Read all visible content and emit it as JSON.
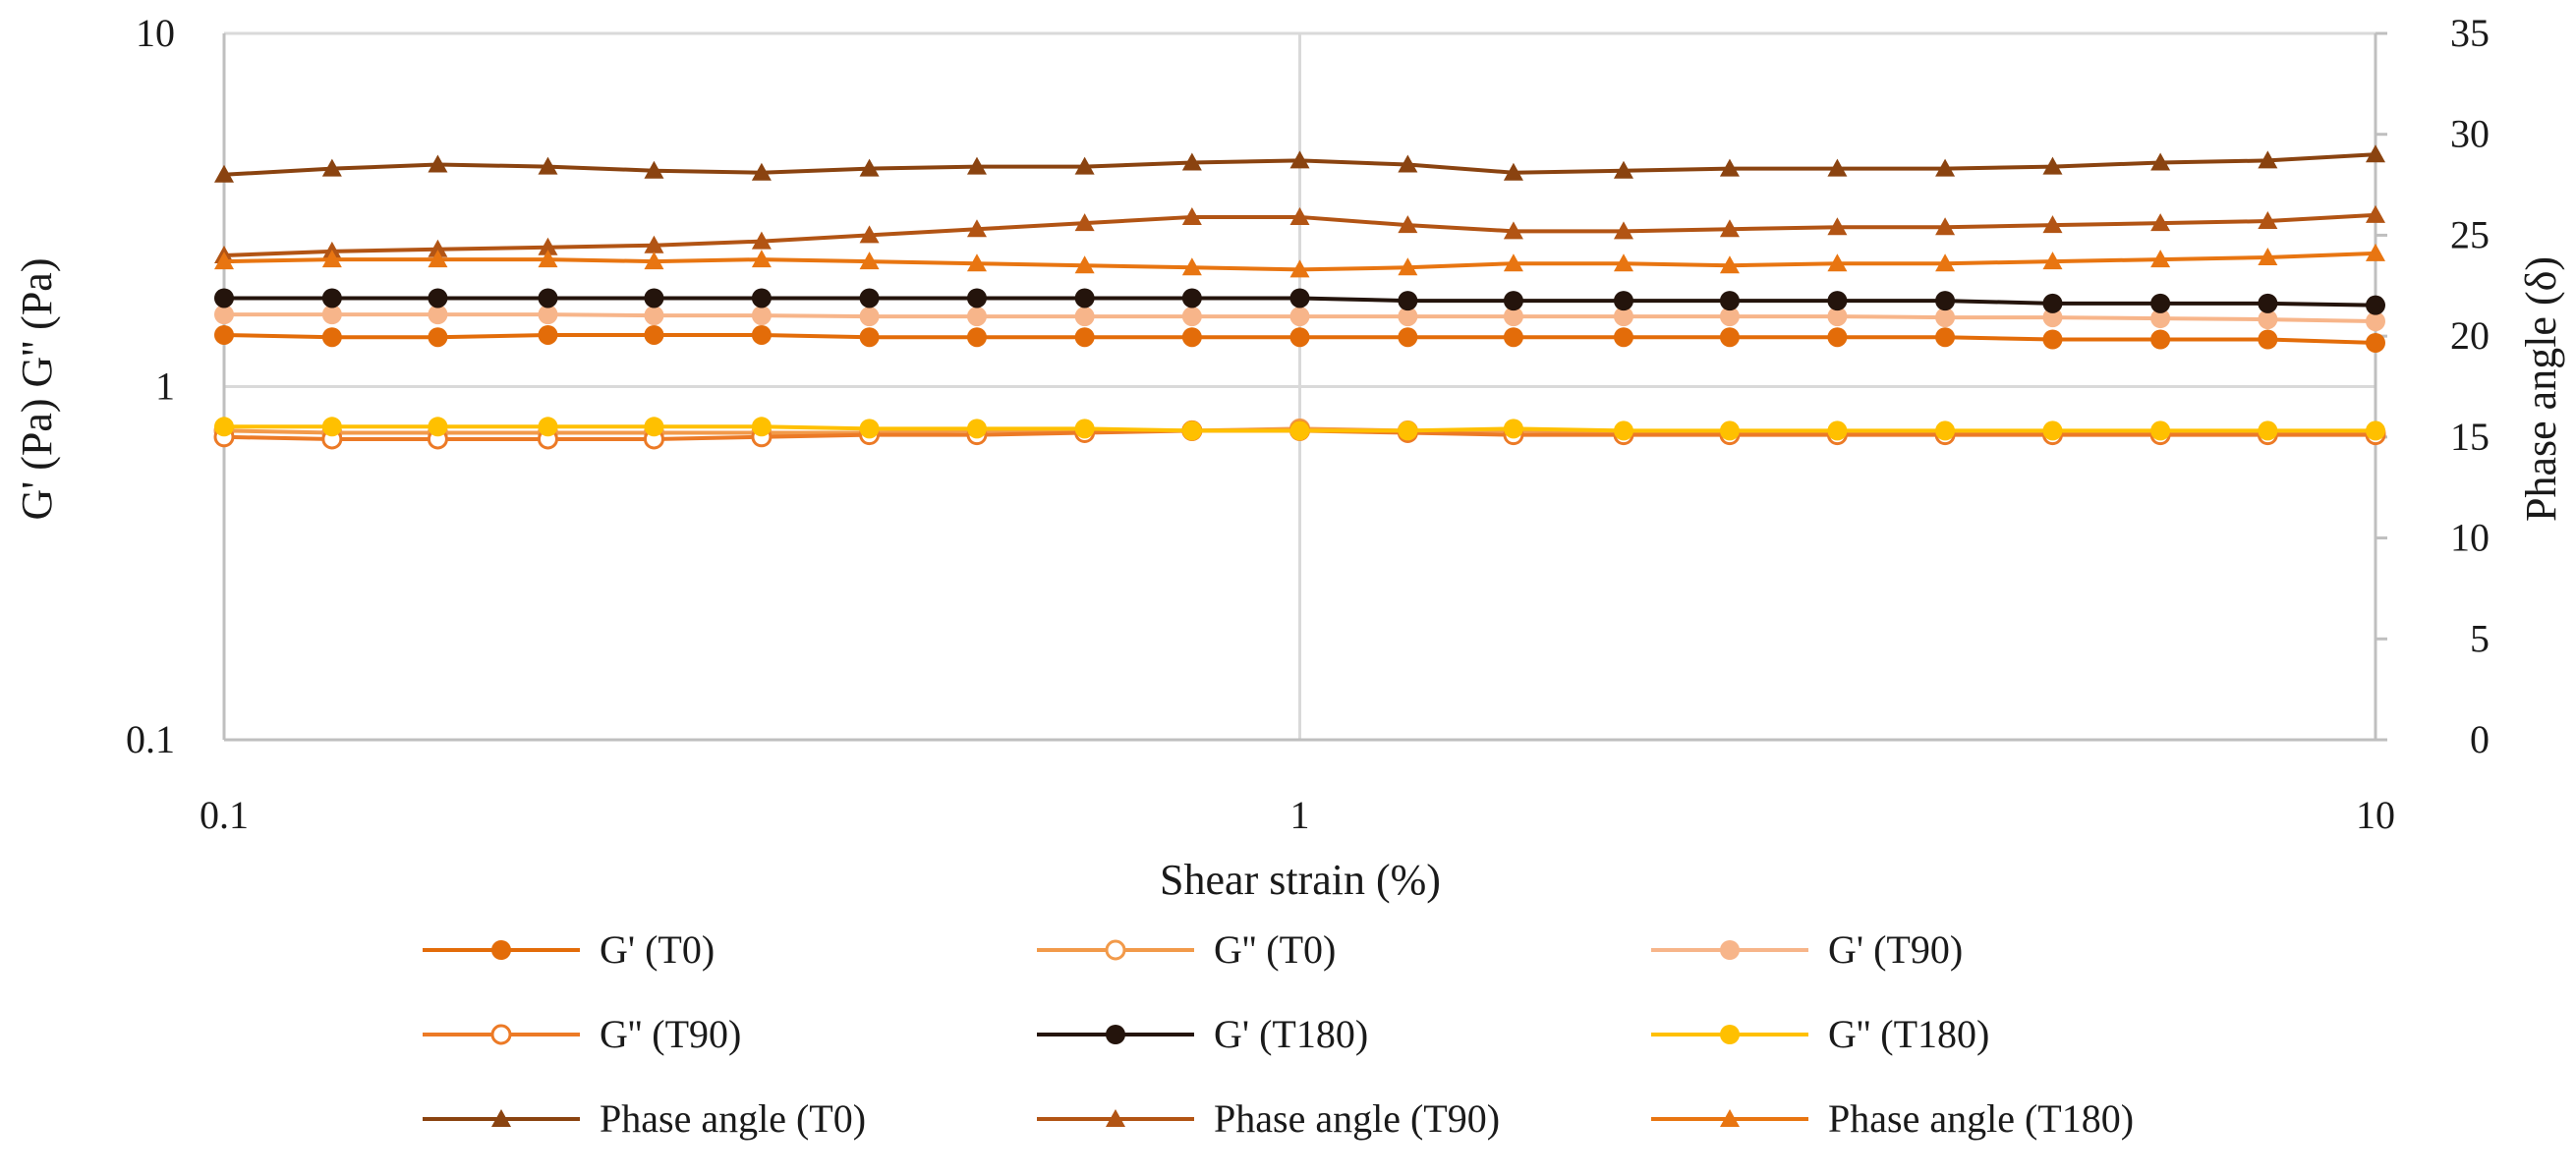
{
  "chart_data": {
    "type": "line",
    "x": [
      0.1,
      0.126,
      0.158,
      0.2,
      0.251,
      0.316,
      0.398,
      0.501,
      0.631,
      0.794,
      1.0,
      1.26,
      1.58,
      2.0,
      2.51,
      3.16,
      3.98,
      5.01,
      6.31,
      7.94,
      10.0
    ],
    "xlabel": "Shear strain (%)",
    "ylabel": "G' (Pa) G'' (Pa)",
    "y2label": "Phase angle (δ)",
    "xscale": "log",
    "yscale": "log",
    "xlim": [
      0.1,
      10
    ],
    "ylim": [
      0.1,
      10
    ],
    "y2lim": [
      0,
      35
    ],
    "x_ticks": [
      "0.1",
      "1",
      "10"
    ],
    "y_ticks": [
      "0.1",
      "1",
      "10"
    ],
    "y2_ticks": [
      "0",
      "5",
      "10",
      "15",
      "20",
      "25",
      "30",
      "35"
    ],
    "grid": true,
    "legend_position": "bottom",
    "series": [
      {
        "name": "G' (T0)",
        "axis": "left",
        "marker": "circle-filled",
        "color": "#E36C09",
        "values": [
          1.4,
          1.38,
          1.38,
          1.4,
          1.4,
          1.4,
          1.38,
          1.38,
          1.38,
          1.38,
          1.38,
          1.38,
          1.38,
          1.38,
          1.38,
          1.38,
          1.38,
          1.36,
          1.36,
          1.36,
          1.33
        ]
      },
      {
        "name": "G'' (T0)",
        "axis": "left",
        "marker": "circle-open",
        "color": "#F29A4A",
        "values": [
          0.75,
          0.74,
          0.74,
          0.74,
          0.74,
          0.74,
          0.74,
          0.75,
          0.75,
          0.75,
          0.76,
          0.75,
          0.75,
          0.74,
          0.74,
          0.74,
          0.74,
          0.74,
          0.74,
          0.74,
          0.74
        ]
      },
      {
        "name": "G' (T90)",
        "axis": "left",
        "marker": "circle-filled",
        "color": "#F7B58A",
        "values": [
          1.6,
          1.6,
          1.6,
          1.6,
          1.59,
          1.59,
          1.58,
          1.58,
          1.58,
          1.58,
          1.58,
          1.58,
          1.58,
          1.58,
          1.58,
          1.58,
          1.57,
          1.57,
          1.56,
          1.55,
          1.53
        ]
      },
      {
        "name": "G'' (T90)",
        "axis": "left",
        "marker": "circle-open",
        "color": "#EC7A26",
        "values": [
          0.72,
          0.71,
          0.71,
          0.71,
          0.71,
          0.72,
          0.73,
          0.73,
          0.74,
          0.75,
          0.75,
          0.74,
          0.73,
          0.73,
          0.73,
          0.73,
          0.73,
          0.73,
          0.73,
          0.73,
          0.73
        ]
      },
      {
        "name": "G' (T180)",
        "axis": "left",
        "marker": "circle-filled",
        "color": "#24140C",
        "values": [
          1.78,
          1.78,
          1.78,
          1.78,
          1.78,
          1.78,
          1.78,
          1.78,
          1.78,
          1.78,
          1.78,
          1.75,
          1.75,
          1.75,
          1.75,
          1.75,
          1.75,
          1.72,
          1.72,
          1.72,
          1.7
        ]
      },
      {
        "name": "G'' (T180)",
        "axis": "left",
        "marker": "circle-filled",
        "color": "#FFC000",
        "values": [
          0.77,
          0.77,
          0.77,
          0.77,
          0.77,
          0.77,
          0.76,
          0.76,
          0.76,
          0.75,
          0.75,
          0.75,
          0.76,
          0.75,
          0.75,
          0.75,
          0.75,
          0.75,
          0.75,
          0.75,
          0.75
        ]
      },
      {
        "name": "Phase angle (T0)",
        "axis": "right",
        "marker": "triangle",
        "color": "#8A4310",
        "values": [
          28.0,
          28.3,
          28.5,
          28.4,
          28.2,
          28.1,
          28.3,
          28.4,
          28.4,
          28.6,
          28.7,
          28.5,
          28.1,
          28.2,
          28.3,
          28.3,
          28.3,
          28.4,
          28.6,
          28.7,
          29.0
        ]
      },
      {
        "name": "Phase angle (T90)",
        "axis": "right",
        "marker": "triangle",
        "color": "#B25414",
        "values": [
          24.0,
          24.2,
          24.3,
          24.4,
          24.5,
          24.7,
          25.0,
          25.3,
          25.6,
          25.9,
          25.9,
          25.5,
          25.2,
          25.2,
          25.3,
          25.4,
          25.4,
          25.5,
          25.6,
          25.7,
          26.0
        ]
      },
      {
        "name": "Phase angle (T180)",
        "axis": "right",
        "marker": "triangle",
        "color": "#E87511",
        "values": [
          23.7,
          23.8,
          23.8,
          23.8,
          23.7,
          23.8,
          23.7,
          23.6,
          23.5,
          23.4,
          23.3,
          23.4,
          23.6,
          23.6,
          23.5,
          23.6,
          23.6,
          23.7,
          23.8,
          23.9,
          24.1
        ]
      }
    ]
  }
}
